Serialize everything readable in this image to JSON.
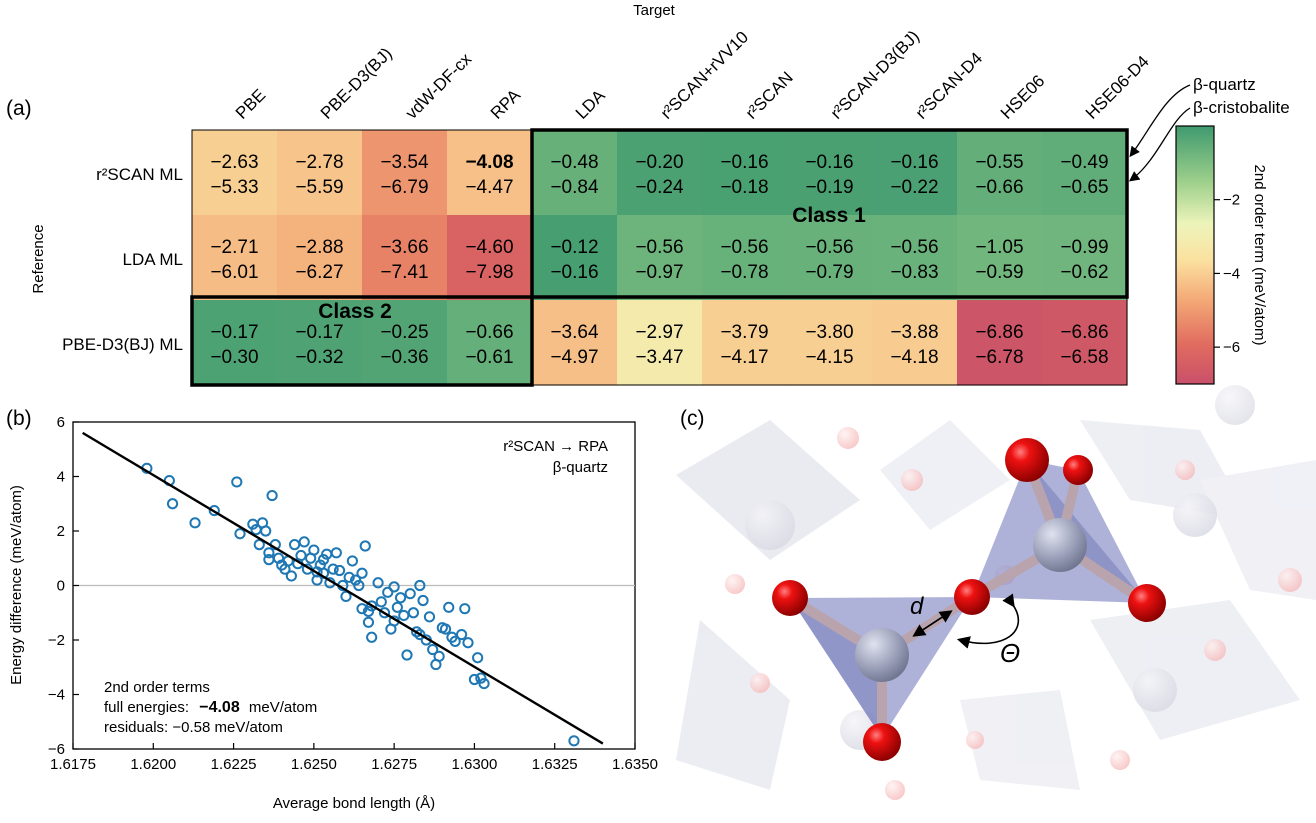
{
  "panels": {
    "a": "(a)",
    "b": "(b)",
    "c": "(c)"
  },
  "heatmap": {
    "top_label": "Target",
    "left_label": "Reference",
    "columns": [
      "PBE",
      "PBE-D3(BJ)",
      "vdW-DF-cx",
      "RPA",
      "LDA",
      "r²SCAN+rVV10",
      "r²SCAN",
      "r²SCAN-D3(BJ)",
      "r²SCAN-D4",
      "HSE06",
      "HSE06-D4"
    ],
    "rows": [
      {
        "label": "r²SCAN ML",
        "quartz": [
          "−2.63",
          "−2.78",
          "−3.54",
          "−4.08",
          "−0.48",
          "−0.20",
          "−0.16",
          "−0.16",
          "−0.16",
          "−0.55",
          "−0.49"
        ],
        "cristobalite": [
          "−5.33",
          "−5.59",
          "−6.79",
          "−4.47",
          "−0.84",
          "−0.24",
          "−0.18",
          "−0.19",
          "−0.22",
          "−0.66",
          "−0.65"
        ]
      },
      {
        "label": "LDA ML",
        "quartz": [
          "−2.71",
          "−2.88",
          "−3.66",
          "−4.60",
          "−0.12",
          "−0.56",
          "−0.56",
          "−0.56",
          "−0.56",
          "−1.05",
          "−0.99"
        ],
        "cristobalite": [
          "−6.01",
          "−6.27",
          "−7.41",
          "−7.98",
          "−0.16",
          "−0.97",
          "−0.78",
          "−0.79",
          "−0.83",
          "−0.59",
          "−0.62"
        ]
      },
      {
        "label": "PBE-D3(BJ) ML",
        "quartz": [
          "−0.17",
          "−0.17",
          "−0.25",
          "−0.66",
          "−3.64",
          "−2.97",
          "−3.79",
          "−3.80",
          "−3.88",
          "−6.86",
          "−6.86"
        ],
        "cristobalite": [
          "−0.30",
          "−0.32",
          "−0.36",
          "−0.61",
          "−4.97",
          "−3.47",
          "−4.17",
          "−4.15",
          "−4.18",
          "−6.78",
          "−6.58"
        ]
      }
    ],
    "color_values": [
      [
        -3.98,
        -4.18,
        -5.17,
        -4.28,
        -0.66,
        -0.22,
        -0.17,
        -0.18,
        -0.19,
        -0.61,
        -0.57
      ],
      [
        -4.36,
        -4.58,
        -5.54,
        -6.29,
        -0.14,
        -0.77,
        -0.67,
        -0.68,
        -0.7,
        -0.82,
        -0.81
      ],
      [
        -0.24,
        -0.25,
        -0.31,
        -0.64,
        -4.31,
        -3.22,
        -3.98,
        -3.98,
        -4.03,
        -6.82,
        -6.72
      ]
    ],
    "bold_cell": "0-3",
    "class1": "Class 1",
    "class2": "Class 2",
    "legend_quartz": "β-quartz",
    "legend_cristobalite": "β-cristobalite",
    "colorbar": {
      "label": "2nd order term (meV/atom)",
      "ticks": [
        "−2",
        "−4",
        "−6"
      ],
      "range": [
        -7,
        0
      ]
    }
  },
  "chart_data": {
    "type": "scatter",
    "title": "r²SCAN → RPA",
    "subtitle": "β-quartz",
    "xlabel": "Average bond length (Å)",
    "ylabel": "Energy difference (meV/atom)",
    "xlim": [
      1.6175,
      1.635
    ],
    "ylim": [
      -6,
      6
    ],
    "xticks": [
      "1.6175",
      "1.6200",
      "1.6225",
      "1.6250",
      "1.6275",
      "1.6300",
      "1.6325",
      "1.6350"
    ],
    "yticks": [
      "−6",
      "−4",
      "−2",
      "0",
      "2",
      "4",
      "6"
    ],
    "fit_line": {
      "x": [
        1.6178,
        1.634
      ],
      "y": [
        5.6,
        -5.8
      ]
    },
    "points": [
      [
        1.6198,
        4.3
      ],
      [
        1.6205,
        3.85
      ],
      [
        1.6206,
        3.0
      ],
      [
        1.6213,
        2.3
      ],
      [
        1.6219,
        2.75
      ],
      [
        1.6226,
        3.8
      ],
      [
        1.6227,
        1.9
      ],
      [
        1.6231,
        2.25
      ],
      [
        1.6232,
        2.05
      ],
      [
        1.6233,
        1.5
      ],
      [
        1.6234,
        2.3
      ],
      [
        1.6235,
        2.0
      ],
      [
        1.6236,
        1.2
      ],
      [
        1.6236,
        0.95
      ],
      [
        1.6237,
        3.3
      ],
      [
        1.6238,
        1.5
      ],
      [
        1.6239,
        1.0
      ],
      [
        1.624,
        0.75
      ],
      [
        1.6241,
        0.6
      ],
      [
        1.6242,
        0.9
      ],
      [
        1.6243,
        0.35
      ],
      [
        1.6244,
        1.5
      ],
      [
        1.6245,
        0.8
      ],
      [
        1.6246,
        1.1
      ],
      [
        1.6247,
        1.6
      ],
      [
        1.6248,
        0.6
      ],
      [
        1.6249,
        1.0
      ],
      [
        1.625,
        1.3
      ],
      [
        1.6251,
        0.5
      ],
      [
        1.6251,
        0.2
      ],
      [
        1.6252,
        0.75
      ],
      [
        1.6253,
        0.95
      ],
      [
        1.6253,
        0.45
      ],
      [
        1.6254,
        1.15
      ],
      [
        1.6255,
        0.1
      ],
      [
        1.6256,
        0.6
      ],
      [
        1.6257,
        1.2
      ],
      [
        1.6258,
        0.55
      ],
      [
        1.6259,
        0.0
      ],
      [
        1.626,
        -0.4
      ],
      [
        1.6261,
        0.3
      ],
      [
        1.6262,
        0.9
      ],
      [
        1.6263,
        0.2
      ],
      [
        1.6264,
        0.0
      ],
      [
        1.6265,
        -0.85
      ],
      [
        1.6265,
        0.45
      ],
      [
        1.6266,
        1.45
      ],
      [
        1.6267,
        -0.95
      ],
      [
        1.6267,
        -1.35
      ],
      [
        1.6268,
        -0.75
      ],
      [
        1.6268,
        -1.9
      ],
      [
        1.627,
        0.1
      ],
      [
        1.6271,
        -0.6
      ],
      [
        1.6272,
        -1.0
      ],
      [
        1.6273,
        -0.25
      ],
      [
        1.6274,
        -1.6
      ],
      [
        1.6275,
        -0.05
      ],
      [
        1.6275,
        -1.3
      ],
      [
        1.6276,
        -0.8
      ],
      [
        1.6277,
        -0.45
      ],
      [
        1.6278,
        -1.1
      ],
      [
        1.6279,
        -2.55
      ],
      [
        1.628,
        -0.3
      ],
      [
        1.6281,
        -1.0
      ],
      [
        1.6282,
        -1.7
      ],
      [
        1.6283,
        -1.8
      ],
      [
        1.6283,
        0.0
      ],
      [
        1.6284,
        -0.55
      ],
      [
        1.6285,
        -2.0
      ],
      [
        1.6286,
        -1.15
      ],
      [
        1.6287,
        -2.35
      ],
      [
        1.6288,
        -2.9
      ],
      [
        1.6289,
        -2.6
      ],
      [
        1.629,
        -1.55
      ],
      [
        1.6291,
        -1.6
      ],
      [
        1.6292,
        -0.8
      ],
      [
        1.6293,
        -1.9
      ],
      [
        1.6294,
        -2.05
      ],
      [
        1.6296,
        -1.8
      ],
      [
        1.6297,
        -0.85
      ],
      [
        1.6298,
        -2.1
      ],
      [
        1.63,
        -3.45
      ],
      [
        1.6301,
        -2.65
      ],
      [
        1.6302,
        -3.4
      ],
      [
        1.6303,
        -3.6
      ],
      [
        1.6331,
        -5.7
      ]
    ],
    "annotation": {
      "line1": "2nd order terms",
      "line2_prefix": "full energies:",
      "line2_value": "−4.08",
      "line2_unit": "meV/atom",
      "line3": "residuals: −0.58 meV/atom"
    }
  },
  "structure": {
    "d": "d",
    "theta": "Θ"
  }
}
